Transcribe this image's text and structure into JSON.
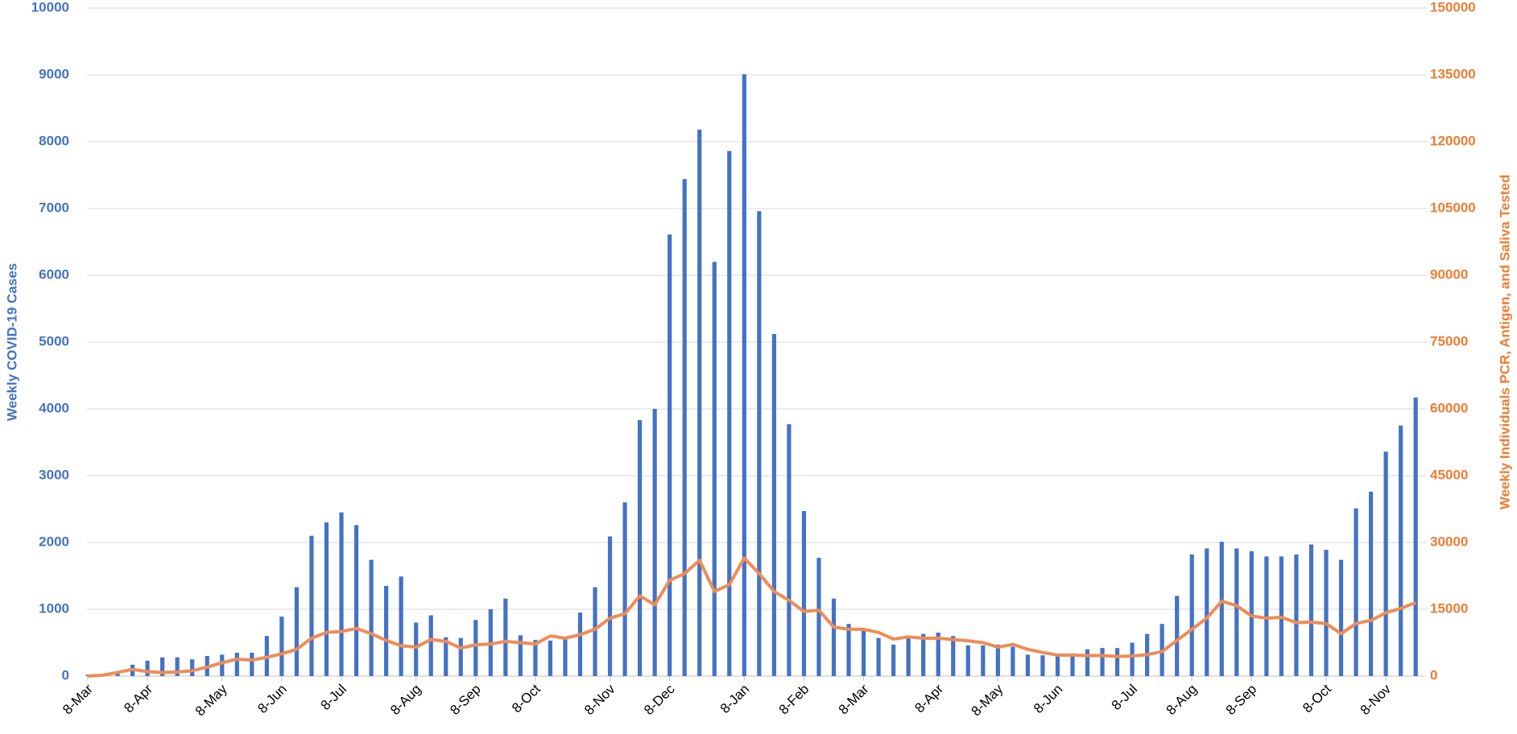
{
  "chart_data": {
    "type": "bar-line",
    "categories": [
      "8-Mar",
      null,
      null,
      null,
      "8-Apr",
      null,
      null,
      null,
      null,
      "8-May",
      null,
      null,
      null,
      "8-Jun",
      null,
      null,
      null,
      "8-Jul",
      null,
      null,
      null,
      null,
      "8-Aug",
      null,
      null,
      null,
      "8-Sep",
      null,
      null,
      null,
      "8-Oct",
      null,
      null,
      null,
      null,
      "8-Nov",
      null,
      null,
      null,
      "8-Dec",
      null,
      null,
      null,
      null,
      "8-Jan",
      null,
      null,
      null,
      "8-Feb",
      null,
      null,
      null,
      "8-Mar",
      null,
      null,
      null,
      null,
      "8-Apr",
      null,
      null,
      null,
      "8-May",
      null,
      null,
      null,
      "8-Jun",
      null,
      null,
      null,
      null,
      "8-Jul",
      null,
      null,
      null,
      "8-Aug",
      null,
      null,
      null,
      "8-Sep",
      null,
      null,
      null,
      null,
      "8-Oct",
      null,
      null,
      null,
      "8-Nov",
      null,
      null
    ],
    "series": [
      {
        "name": "Weekly COVID-19 Cases",
        "color": "#4472c4",
        "values": [
          20,
          20,
          70,
          170,
          230,
          280,
          280,
          250,
          300,
          320,
          350,
          350,
          600,
          890,
          1330,
          2100,
          2300,
          2450,
          2260,
          1740,
          1350,
          1490,
          800,
          910,
          580,
          570,
          840,
          1000,
          1160,
          610,
          540,
          530,
          560,
          950,
          1330,
          2090,
          2600,
          3830,
          4000,
          6610,
          7440,
          8180,
          6200,
          7860,
          9010,
          6960,
          5120,
          3770,
          2470,
          1770,
          1160,
          780,
          700,
          570,
          470,
          590,
          630,
          650,
          600,
          460,
          460,
          470,
          440,
          320,
          310,
          320,
          340,
          400,
          420,
          420,
          500,
          630,
          780,
          1200,
          1820,
          1910,
          2010,
          1910,
          1870,
          1790,
          1790,
          1820,
          1970,
          1890,
          1740,
          2510,
          2760,
          3360,
          3750,
          4170
        ]
      },
      {
        "name": "Weekly Individuals PCR, Antigen, and Saliva Tested",
        "color": "#ef8c55",
        "axis": "y2",
        "values": [
          0,
          200,
          800,
          1500,
          1000,
          800,
          900,
          1200,
          2000,
          3000,
          3800,
          3600,
          4200,
          5000,
          6000,
          8500,
          9800,
          10000,
          10700,
          9500,
          8000,
          6800,
          6500,
          8200,
          7800,
          6300,
          7000,
          7200,
          7800,
          7500,
          7200,
          9000,
          8500,
          9300,
          10500,
          13000,
          14000,
          18000,
          16000,
          21500,
          23000,
          26000,
          19000,
          20500,
          26500,
          23000,
          19000,
          17000,
          14500,
          14800,
          11000,
          10500,
          10500,
          9800,
          8300,
          8800,
          8500,
          8500,
          8200,
          7900,
          7500,
          6500,
          7100,
          6000,
          5300,
          4700,
          4700,
          4600,
          4600,
          4400,
          4500,
          4800,
          5500,
          8000,
          10500,
          13000,
          16800,
          15800,
          13500,
          13000,
          13200,
          12000,
          12100,
          11800,
          9500,
          11800,
          12500,
          14200,
          15200,
          16500
        ]
      }
    ],
    "ylabel": "Weekly COVID-19 Cases",
    "y2label": "Weekly Individuals PCR, Antigen, and Saliva Tested",
    "ylim": [
      0,
      10000
    ],
    "yticks": [
      0,
      1000,
      2000,
      3000,
      4000,
      5000,
      6000,
      7000,
      8000,
      9000,
      10000
    ],
    "y2lim": [
      0,
      150000
    ],
    "y2ticks": [
      0,
      15000,
      30000,
      45000,
      60000,
      75000,
      90000,
      105000,
      120000,
      135000,
      150000
    ],
    "grid": true
  }
}
